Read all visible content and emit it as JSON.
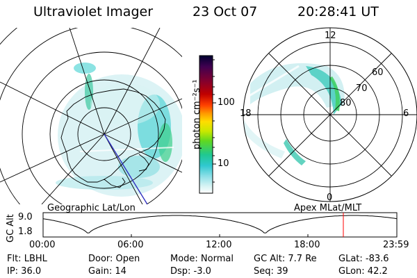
{
  "header": {
    "title": "Ultraviolet Imager",
    "date": "23 Oct 07",
    "time": "20:28:41 UT"
  },
  "left_panel": {
    "caption": "Geographic Lat/Lon"
  },
  "right_panel": {
    "caption": "Apex MLat/MLT",
    "mlt_labels": {
      "top": "12",
      "left": "18",
      "right": "6",
      "bottom": "0"
    },
    "lat_labels": [
      "60",
      "70",
      "80"
    ]
  },
  "colorbar": {
    "unit": "photon cm⁻²s⁻¹",
    "ticks": [
      "100",
      "10"
    ],
    "colors": [
      "#000040",
      "#400060",
      "#800040",
      "#b00000",
      "#e02000",
      "#ff6000",
      "#ff9900",
      "#ffcc00",
      "#e0e000",
      "#a0e000",
      "#40d000",
      "#20c870",
      "#20c8c8",
      "#80e0e0",
      "#b8ecec",
      "#e0f8f8",
      "#ffffff"
    ]
  },
  "altitude_plot": {
    "ylabel": "GC Alt",
    "y_ticks": [
      "9.0",
      "1.8"
    ],
    "x_ticks": [
      "00:00",
      "06:00",
      "12:00",
      "18:00",
      "23:59"
    ],
    "current_marker_color": "#ff0000"
  },
  "info": {
    "flt": "Flt:  LBHL",
    "ip": "IP:  36.0",
    "door": "Door:  Open",
    "gain": "Gain:  14",
    "mode": "Mode:  Normal",
    "dsp": "Dsp:     -3.0",
    "gcalt": "GC Alt:  7.7 Re",
    "seq": "Seq:  39",
    "glat": "GLat:  -83.6",
    "glon": "GLon:   42.2"
  }
}
